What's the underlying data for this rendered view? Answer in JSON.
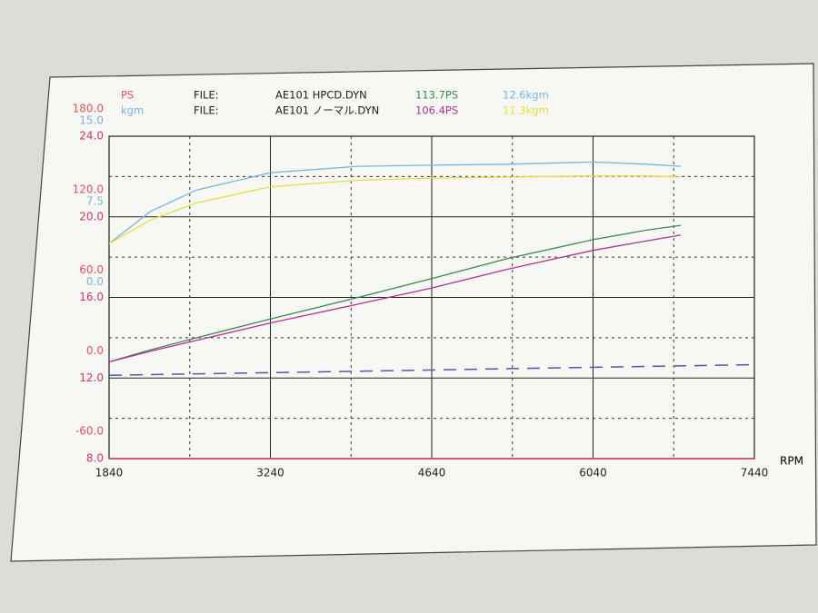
{
  "chart_data": {
    "type": "line",
    "header": [
      [
        "PS",
        "FILE:",
        "AE101 HPCD.DYN",
        "113.7PS",
        "12.6kgm"
      ],
      [
        "kgm",
        "FILE:",
        "AE101 ノーマル.DYN",
        "106.4PS",
        "11.3kgm"
      ]
    ],
    "xlabel": "RPM",
    "xlim": [
      1840,
      7440
    ],
    "xticks": [
      1840,
      3240,
      4640,
      6040,
      7440
    ],
    "ylim": [
      -60,
      180
    ],
    "yticks": [
      {
        "value": 180,
        "label": "180.0"
      },
      {
        "value": 120,
        "label": "120.0"
      },
      {
        "value": 60,
        "label": "60.0"
      },
      {
        "value": 0,
        "label": "0.0"
      },
      {
        "value": -60,
        "label": "-60.0"
      }
    ],
    "y_color": "#e2525c",
    "y2lim": [
      -15,
      15
    ],
    "y2ticks": [
      {
        "value": 15,
        "label": "15.0"
      },
      {
        "value": 7.5,
        "label": "7.5"
      },
      {
        "value": 0,
        "label": "0.0"
      }
    ],
    "y2_color": "#7fb2dc",
    "y3lim": [
      8,
      24
    ],
    "y3ticks": [
      {
        "value": 24,
        "label": "24.0"
      },
      {
        "value": 20,
        "label": "20.0"
      },
      {
        "value": 16,
        "label": "16.0"
      },
      {
        "value": 12,
        "label": "12.0"
      },
      {
        "value": 8,
        "label": "8.0"
      }
    ],
    "y3_color": "#d2326f",
    "grid": true,
    "x": [
      1840,
      2200,
      2600,
      3240,
      4000,
      4640,
      5300,
      6040,
      6500,
      6800
    ],
    "series": [
      {
        "color": "#3d8a4c",
        "values": [
          12,
          21,
          30,
          44,
          60,
          74,
          89,
          103,
          110,
          113.7
        ]
      },
      {
        "color": "#b23298",
        "values": [
          12,
          20,
          28,
          41,
          55,
          67,
          81,
          95,
          102,
          106.4
        ]
      },
      {
        "color": "#76b6e2",
        "axis": "y2",
        "values": [
          5.0,
          8.0,
          10.0,
          11.6,
          12.2,
          12.3,
          12.4,
          12.6,
          12.4,
          12.2
        ]
      },
      {
        "color": "#e6df3c",
        "axis": "y2",
        "values": [
          5.0,
          7.2,
          8.8,
          10.3,
          10.9,
          11.1,
          11.2,
          11.3,
          11.3,
          11.2
        ]
      },
      {
        "color": "#5555b2",
        "dashed": true,
        "x": [
          1840,
          7440
        ],
        "values": [
          2,
          10
        ]
      }
    ]
  }
}
